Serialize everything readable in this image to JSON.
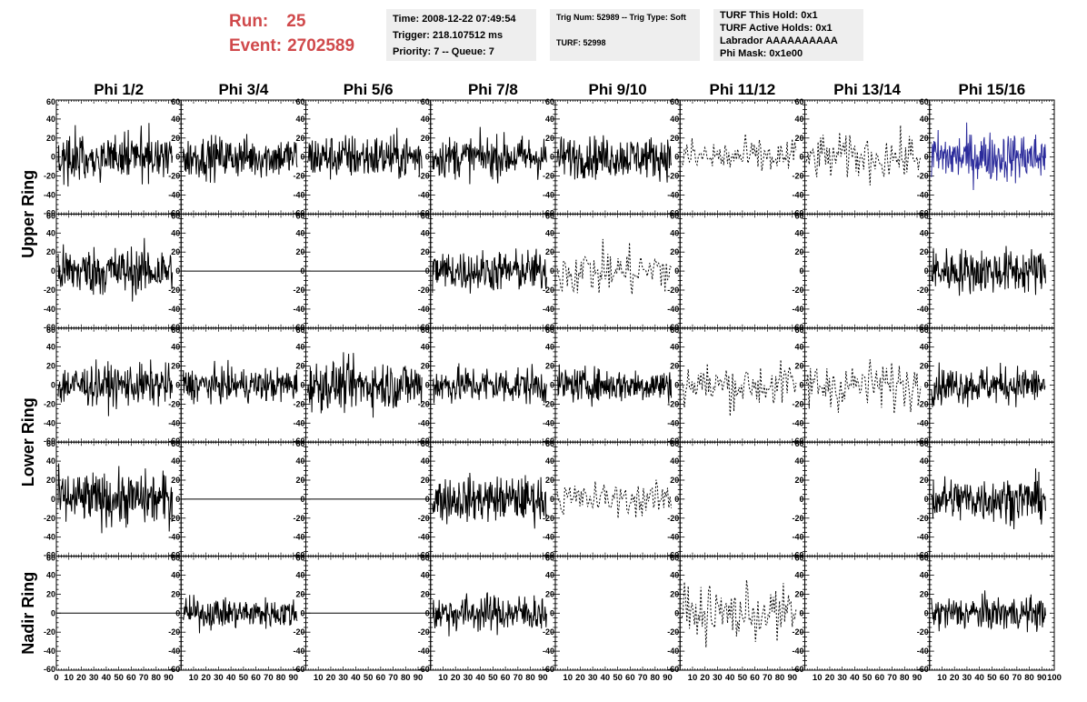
{
  "run_info": {
    "run_label": "Run:",
    "run_value": "25",
    "event_label": "Event:",
    "event_value": "2702589"
  },
  "info_boxes": {
    "time_trigger": [
      "Time: 2008-12-22 07:49:54",
      "Trigger: 218.107512 ms",
      "Priority: 7 -- Queue: 7"
    ],
    "trig": [
      "Trig Num: 52989 -- Trig Type: Soft",
      "TURF: 52998"
    ],
    "turf": [
      "TURF This Hold: 0x1",
      "TURF Active Holds: 0x1",
      "Labrador AAAAAAAAAA",
      "Phi Mask: 0x1e00"
    ]
  },
  "chart_data": {
    "type": "line",
    "column_titles": [
      "Phi 1/2",
      "Phi 3/4",
      "Phi 5/6",
      "Phi 7/8",
      "Phi 9/10",
      "Phi 11/12",
      "Phi 13/14",
      "Phi 15/16"
    ],
    "ring_labels": [
      {
        "label": "Upper Ring",
        "rows": [
          0,
          1
        ]
      },
      {
        "label": "Lower Ring",
        "rows": [
          2,
          3
        ]
      },
      {
        "label": "Nadir Ring",
        "rows": [
          4,
          4
        ]
      }
    ],
    "xlim": [
      0,
      100
    ],
    "ylim": [
      -60,
      60
    ],
    "x_ticks": [
      "0",
      "10",
      "20",
      "30",
      "40",
      "50",
      "60",
      "70",
      "80",
      "90",
      "100"
    ],
    "y_ticks": [
      "60",
      "40",
      "20",
      "0",
      "-20",
      "-40",
      "-60"
    ],
    "colors": {
      "waveform": "#000000",
      "highlight": "#2b2b9b"
    },
    "rows": [
      [
        "solid:12",
        "solid:11",
        "solid:12",
        "solid:11",
        "solid:11",
        "dashed:10",
        "dashed:12",
        "highlight:13"
      ],
      [
        "solid:13",
        "flat:0",
        "flat:0",
        "solid:11",
        "dashed:13",
        "empty:0",
        "empty:0",
        "solid:12"
      ],
      [
        "solid:11",
        "solid:9",
        "solid:13",
        "solid:10",
        "solid:9",
        "dashed:12",
        "dashed:13",
        "solid:10"
      ],
      [
        "solid:14",
        "flat:0",
        "flat:0",
        "solid:12",
        "dashed:9",
        "empty:0",
        "empty:0",
        "solid:12"
      ],
      [
        "flat:0",
        "solid:8",
        "flat:0",
        "solid:10",
        "empty:0",
        "dashed:14",
        "empty:0",
        "solid:9"
      ]
    ]
  }
}
